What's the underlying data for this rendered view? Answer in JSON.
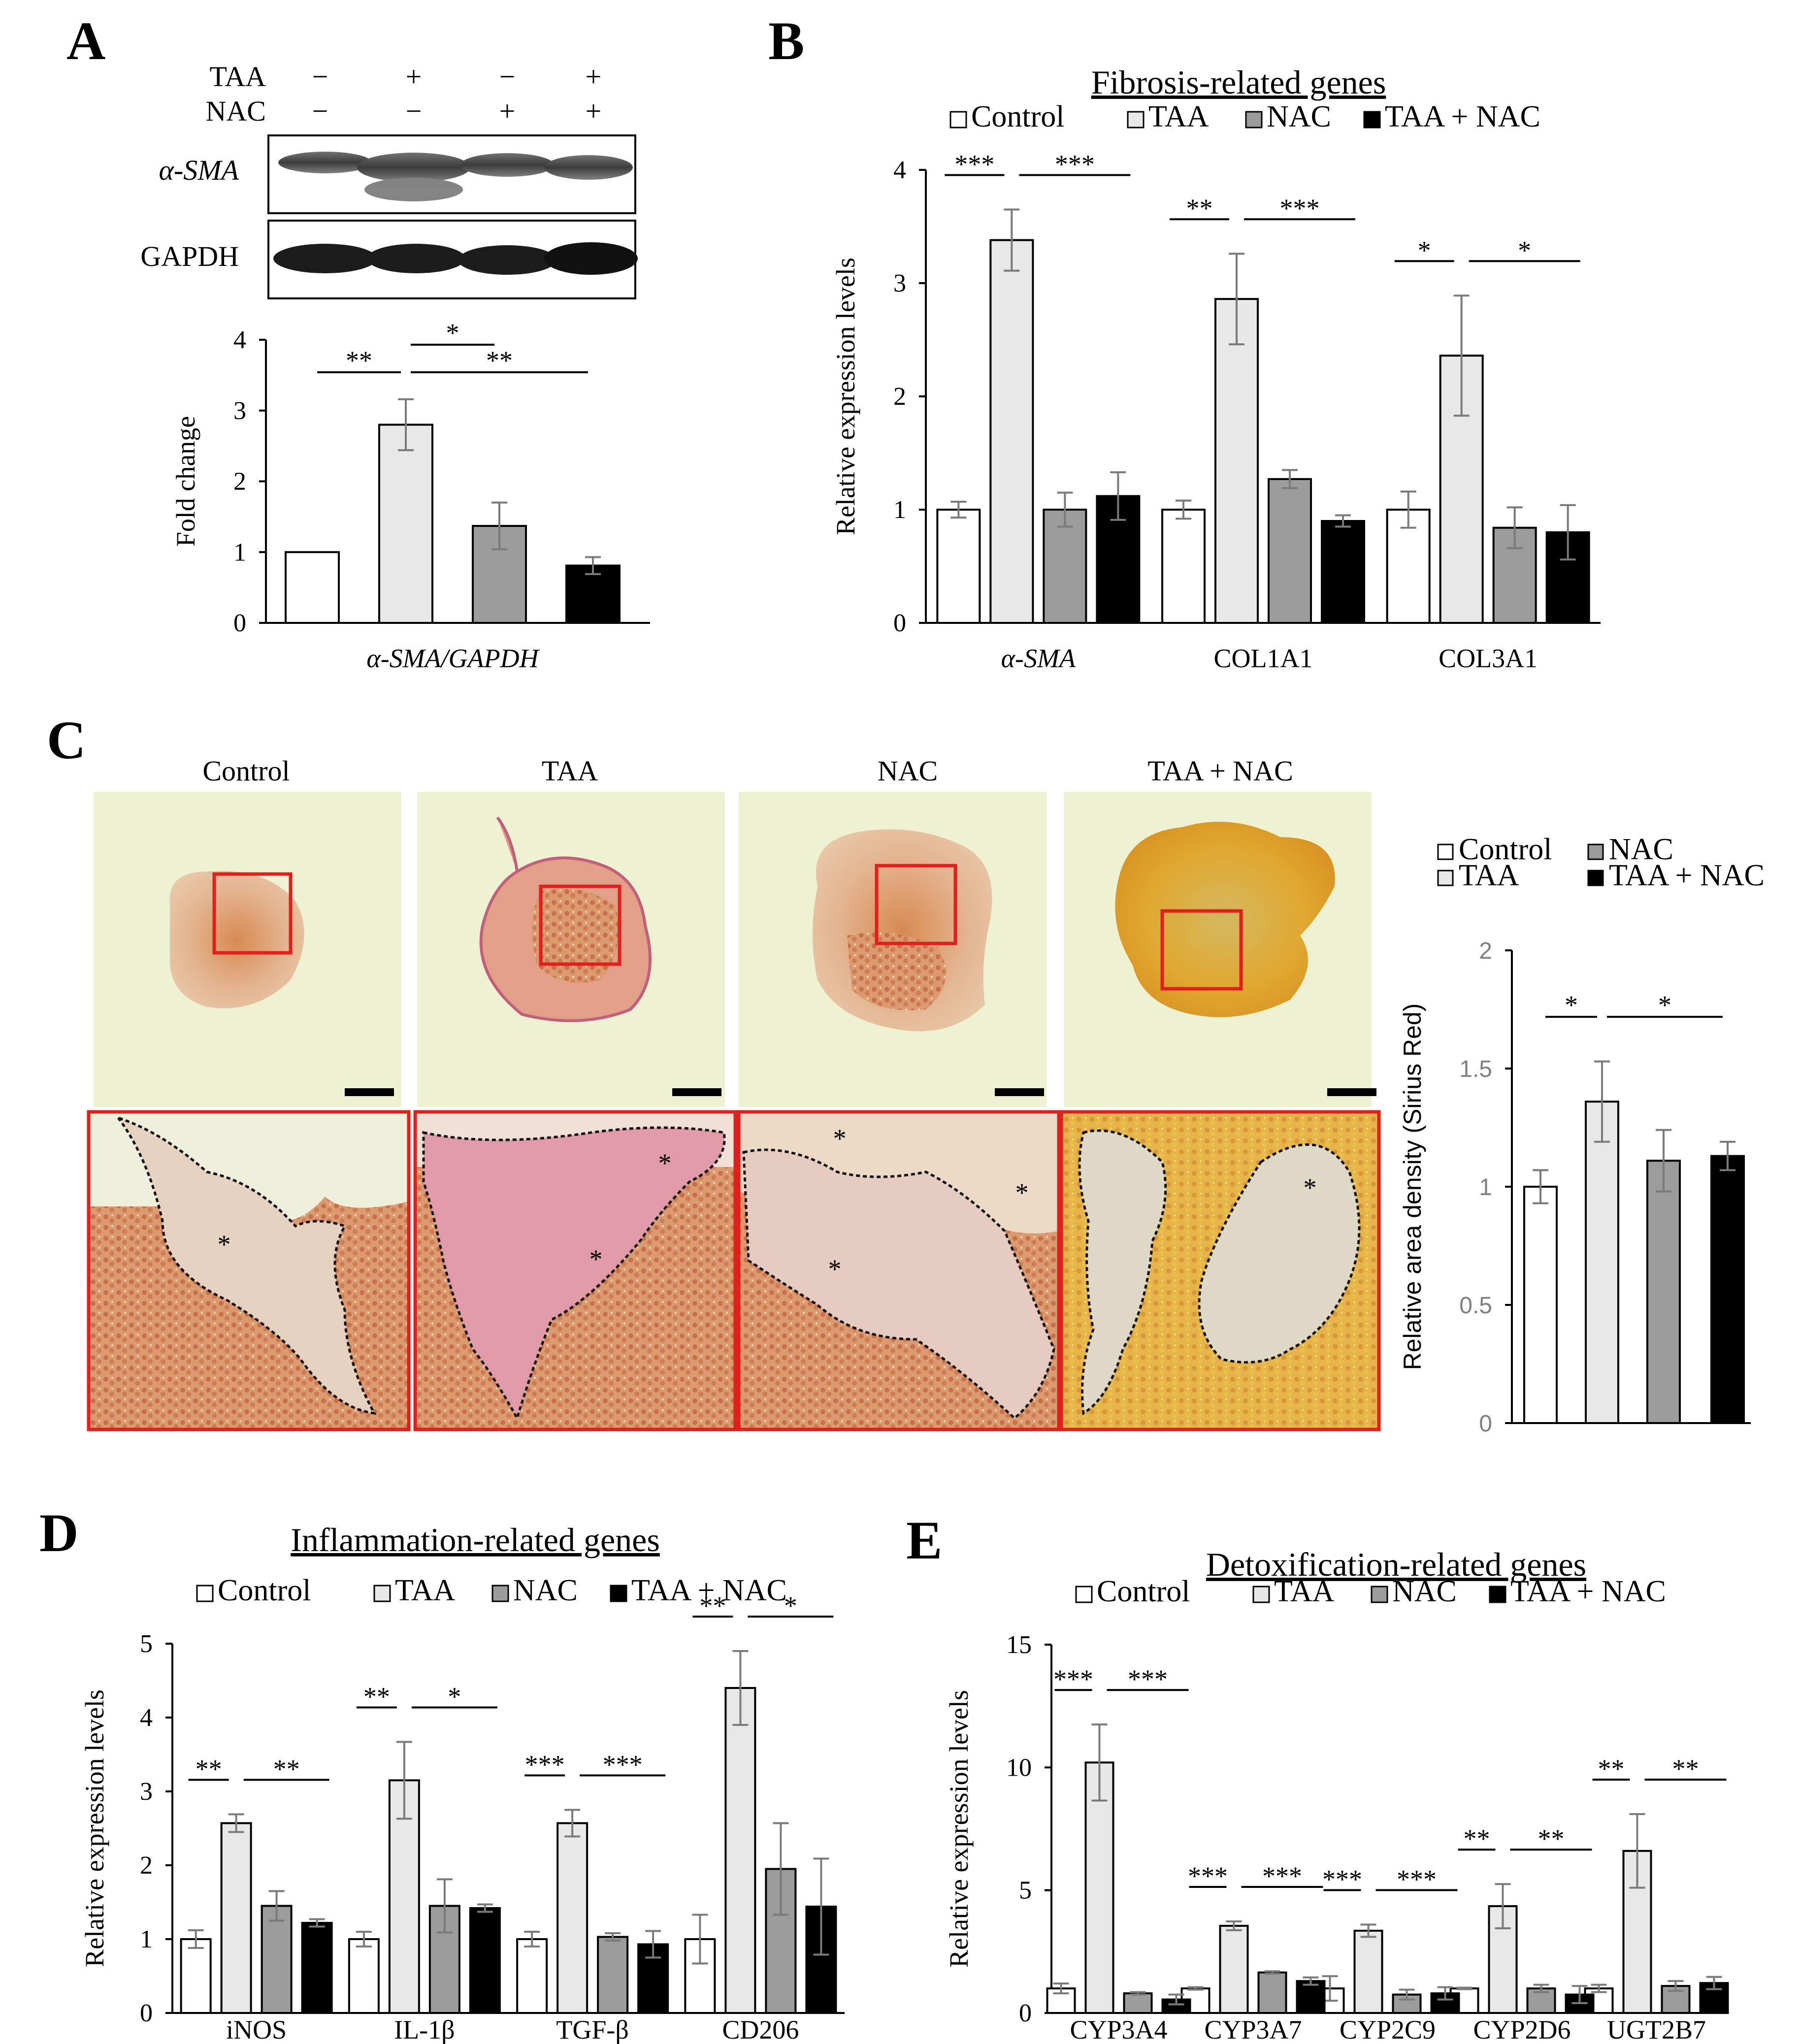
{
  "colors": {
    "Control": "#ffffff",
    "TAA": "#e8e8e8",
    "NAC": "#9c9c9c",
    "TAA + NAC": "#000000",
    "frame_red": "#e0201c",
    "error_bar": "#7a7a7a"
  },
  "groups": [
    "Control",
    "TAA",
    "NAC",
    "TAA + NAC"
  ],
  "panels": {
    "A": {
      "letter": "A",
      "blot": {
        "row_labels": [
          "TAA",
          "NAC"
        ],
        "signs": [
          [
            "−",
            "+",
            "−",
            "+"
          ],
          [
            "−",
            "−",
            "+",
            "+"
          ]
        ],
        "band_labels": [
          "α-SMA",
          "GAPDH"
        ]
      }
    },
    "B": {
      "letter": "B"
    },
    "C": {
      "letter": "C",
      "image_labels": [
        "Control",
        "TAA",
        "NAC",
        "TAA + NAC"
      ],
      "stars": [
        "*",
        "*",
        "*",
        "*",
        "*",
        "*",
        "*"
      ],
      "legend": [
        "Control",
        "NAC",
        "TAA",
        "TAA + NAC"
      ]
    },
    "D": {
      "letter": "D"
    },
    "E": {
      "letter": "E"
    }
  },
  "chart_data": [
    {
      "id": "A",
      "type": "bar",
      "title": "",
      "categories": [
        "α-SMA/GAPDH"
      ],
      "series": [
        {
          "name": "Control",
          "values": [
            1.0
          ],
          "errors": [
            0
          ]
        },
        {
          "name": "TAA",
          "values": [
            2.8
          ],
          "errors": [
            0.36
          ]
        },
        {
          "name": "NAC",
          "values": [
            1.37
          ],
          "errors": [
            0.33
          ]
        },
        {
          "name": "TAA + NAC",
          "values": [
            0.81
          ],
          "errors": [
            0.12
          ]
        }
      ],
      "ylabel": "Fold change",
      "xlabel": "",
      "ylim": [
        0,
        4
      ],
      "yticks": [
        "0",
        "1",
        "2",
        "3",
        "4"
      ],
      "significance": [
        {
          "from": 0,
          "to": 1,
          "label": "**"
        },
        {
          "from": 1,
          "to": 2,
          "label": "*"
        },
        {
          "from": 1,
          "to": 3,
          "label": "**"
        }
      ]
    },
    {
      "id": "B",
      "type": "bar",
      "title": "Fibrosis-related genes",
      "categories": [
        "α-SMA",
        "COL1A1",
        "COL3A1"
      ],
      "series": [
        {
          "name": "Control",
          "values": [
            1.0,
            1.0,
            1.0
          ],
          "errors": [
            0.07,
            0.08,
            0.16
          ]
        },
        {
          "name": "TAA",
          "values": [
            3.38,
            2.86,
            2.36
          ],
          "errors": [
            0.27,
            0.4,
            0.53
          ]
        },
        {
          "name": "NAC",
          "values": [
            1.0,
            1.27,
            0.84
          ],
          "errors": [
            0.15,
            0.08,
            0.18
          ]
        },
        {
          "name": "TAA + NAC",
          "values": [
            1.12,
            0.9,
            0.8
          ],
          "errors": [
            0.21,
            0.05,
            0.24
          ]
        }
      ],
      "ylabel": "Relative expression levels",
      "ylim": [
        0,
        4
      ],
      "yticks": [
        "0",
        "1",
        "2",
        "3",
        "4"
      ],
      "significance": [
        {
          "cat": 0,
          "pairs": [
            [
              0,
              1,
              "***"
            ],
            [
              1,
              3,
              "***"
            ]
          ]
        },
        {
          "cat": 1,
          "pairs": [
            [
              0,
              1,
              "**"
            ],
            [
              1,
              3,
              "***"
            ]
          ]
        },
        {
          "cat": 2,
          "pairs": [
            [
              0,
              1,
              "*"
            ],
            [
              1,
              3,
              "*"
            ]
          ]
        }
      ]
    },
    {
      "id": "C",
      "type": "bar",
      "title": "",
      "categories": [
        ""
      ],
      "series": [
        {
          "name": "Control",
          "values": [
            1.0
          ],
          "errors": [
            0.07
          ]
        },
        {
          "name": "TAA",
          "values": [
            1.36
          ],
          "errors": [
            0.17
          ]
        },
        {
          "name": "NAC",
          "values": [
            1.11
          ],
          "errors": [
            0.13
          ]
        },
        {
          "name": "TAA + NAC",
          "values": [
            1.13
          ],
          "errors": [
            0.06
          ]
        }
      ],
      "ylabel": "Relative area density (Sirius Red)",
      "ylim": [
        0,
        2
      ],
      "yticks": [
        "0",
        "0.5",
        "1",
        "1.5",
        "2"
      ],
      "significance": [
        {
          "from": 0,
          "to": 1,
          "label": "*"
        },
        {
          "from": 1,
          "to": 3,
          "label": "*"
        }
      ]
    },
    {
      "id": "D",
      "type": "bar",
      "title": "Inflammation-related genes",
      "categories": [
        "iNOS",
        "IL-1β",
        "TGF-β",
        "CD206"
      ],
      "series": [
        {
          "name": "Control",
          "values": [
            1.0,
            1.0,
            1.0,
            1.0
          ],
          "errors": [
            0.12,
            0.1,
            0.1,
            0.33
          ]
        },
        {
          "name": "TAA",
          "values": [
            2.57,
            3.15,
            2.57,
            4.4
          ],
          "errors": [
            0.12,
            0.52,
            0.18,
            0.5
          ]
        },
        {
          "name": "NAC",
          "values": [
            1.45,
            1.45,
            1.03,
            1.95
          ],
          "errors": [
            0.2,
            0.36,
            0.05,
            0.62
          ]
        },
        {
          "name": "TAA + NAC",
          "values": [
            1.22,
            1.42,
            0.93,
            1.44
          ],
          "errors": [
            0.05,
            0.05,
            0.18,
            0.65
          ]
        }
      ],
      "ylabel": "Relative expression levels",
      "ylim": [
        0,
        5
      ],
      "yticks": [
        "0",
        "1",
        "2",
        "3",
        "4",
        "5"
      ],
      "significance": [
        {
          "cat": 0,
          "pairs": [
            [
              0,
              1,
              "**"
            ],
            [
              1,
              3,
              "**"
            ]
          ]
        },
        {
          "cat": 1,
          "pairs": [
            [
              0,
              1,
              "**"
            ],
            [
              1,
              3,
              "*"
            ]
          ]
        },
        {
          "cat": 2,
          "pairs": [
            [
              0,
              1,
              "***"
            ],
            [
              1,
              3,
              "***"
            ]
          ]
        },
        {
          "cat": 3,
          "pairs": [
            [
              0,
              1,
              "**"
            ],
            [
              1,
              3,
              "*"
            ]
          ]
        }
      ]
    },
    {
      "id": "E",
      "type": "bar",
      "title": "Detoxification-related genes",
      "categories": [
        "CYP3A4",
        "CYP3A7",
        "CYP2C9",
        "CYP2D6",
        "UGT2B7"
      ],
      "series": [
        {
          "name": "Control",
          "values": [
            1.0,
            1.0,
            1.0,
            1.0,
            1.0
          ],
          "errors": [
            0.2,
            0.05,
            0.5,
            0.03,
            0.15
          ]
        },
        {
          "name": "TAA",
          "values": [
            10.2,
            3.55,
            3.35,
            4.35,
            6.6
          ],
          "errors": [
            1.55,
            0.18,
            0.25,
            0.9,
            1.5
          ]
        },
        {
          "name": "NAC",
          "values": [
            0.8,
            1.65,
            0.75,
            1.0,
            1.1
          ],
          "errors": [
            0.05,
            0.05,
            0.2,
            0.15,
            0.2
          ]
        },
        {
          "name": "TAA + NAC",
          "values": [
            0.55,
            1.3,
            0.8,
            0.75,
            1.22
          ],
          "errors": [
            0.2,
            0.15,
            0.25,
            0.35,
            0.25
          ]
        }
      ],
      "ylabel": "Relative expression levels",
      "ylim": [
        0,
        15
      ],
      "yticks": [
        "0",
        "5",
        "10",
        "15"
      ],
      "significance": [
        {
          "cat": 0,
          "pairs": [
            [
              0,
              1,
              "***"
            ],
            [
              1,
              3,
              "***"
            ]
          ]
        },
        {
          "cat": 1,
          "pairs": [
            [
              0,
              1,
              "***"
            ],
            [
              1,
              3,
              "***"
            ]
          ]
        },
        {
          "cat": 2,
          "pairs": [
            [
              0,
              1,
              "***"
            ],
            [
              1,
              3,
              "***"
            ]
          ]
        },
        {
          "cat": 3,
          "pairs": [
            [
              0,
              1,
              "**"
            ],
            [
              1,
              3,
              "**"
            ]
          ]
        },
        {
          "cat": 4,
          "pairs": [
            [
              0,
              1,
              "**"
            ],
            [
              1,
              3,
              "**"
            ]
          ]
        }
      ]
    }
  ]
}
